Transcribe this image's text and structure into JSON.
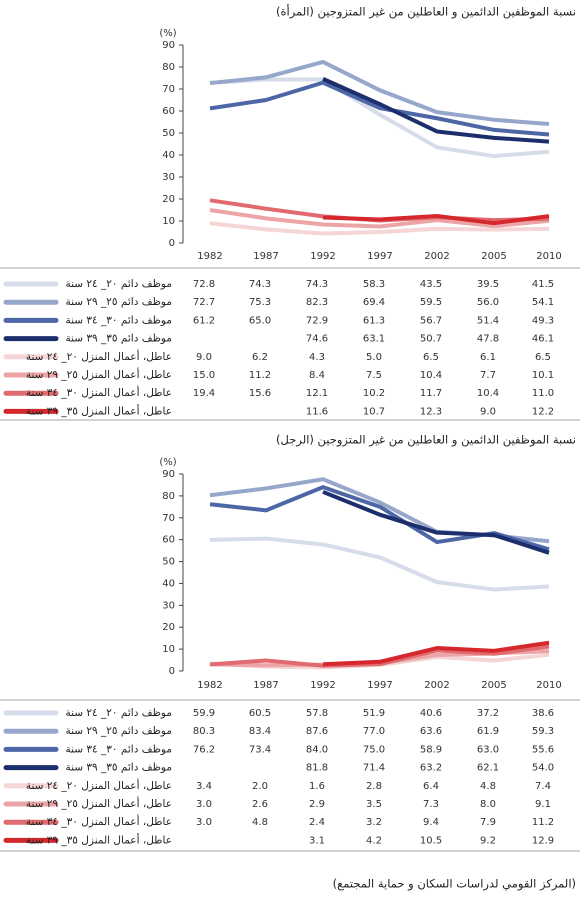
{
  "chart_data": [
    {
      "type": "line",
      "title": "نسبة الموظفين الدائمين و العاطلين من غير المتزوجين (المرأة)",
      "y_unit": "(%)",
      "categories": [
        "1982",
        "1987",
        "1992",
        "1997",
        "2002",
        "2005",
        "2010"
      ],
      "ylim": [
        0,
        90
      ],
      "yticks": [
        0,
        10,
        20,
        30,
        40,
        50,
        60,
        70,
        80,
        90
      ],
      "grid": false,
      "series": [
        {
          "name": "موظف دائم ٢٠_ ٢٤ سنة",
          "color": "#d6dcea",
          "values": [
            72.8,
            74.3,
            74.3,
            58.3,
            43.5,
            39.5,
            41.5
          ],
          "value_labels": [
            "72.8",
            "74.3",
            "74.3",
            "58.3",
            "43.5",
            "39.5",
            "41.5"
          ]
        },
        {
          "name": "موظف دائم ٢٥_ ٢٩ سنة",
          "color": "#97a7cb",
          "values": [
            72.7,
            75.3,
            82.3,
            69.4,
            59.5,
            56.0,
            54.1
          ],
          "value_labels": [
            "72.7",
            "75.3",
            "82.3",
            "69.4",
            "59.5",
            "56.0",
            "54.1"
          ]
        },
        {
          "name": "موظف دائم ٣٠_ ٣٤ سنة",
          "color": "#4d66a5",
          "values": [
            61.2,
            65.0,
            72.9,
            61.3,
            56.7,
            51.4,
            49.3
          ],
          "value_labels": [
            "61.2",
            "65.0",
            "72.9",
            "61.3",
            "56.7",
            "51.4",
            "49.3"
          ]
        },
        {
          "name": "موظف دائم ٣٥_ ٣٩ سنة",
          "color": "#1c2e6c",
          "values": [
            null,
            null,
            74.6,
            63.1,
            50.7,
            47.8,
            46.1
          ],
          "value_labels": [
            null,
            null,
            "74.6",
            "63.1",
            "50.7",
            "47.8",
            "46.1"
          ]
        },
        {
          "name": "عاطل، أعمال المنزل ٢٠_ ٢٤ سنة",
          "color": "#f5d5d5",
          "values": [
            9.0,
            6.2,
            4.3,
            5.0,
            6.5,
            6.1,
            6.5
          ],
          "value_labels": [
            "9.0",
            "6.2",
            "4.3",
            "5.0",
            "6.5",
            "6.1",
            "6.5"
          ]
        },
        {
          "name": "عاطل، أعمال المنزل ٢٥_ ٢٩ سنة",
          "color": "#eca4a6",
          "values": [
            15.0,
            11.2,
            8.4,
            7.5,
            10.4,
            7.7,
            10.1
          ],
          "value_labels": [
            "15.0",
            "11.2",
            "8.4",
            "7.5",
            "10.4",
            "7.7",
            "10.1"
          ]
        },
        {
          "name": "عاطل، أعمال المنزل ٣٠_ ٣٤ سنة",
          "color": "#e06a6d",
          "values": [
            19.4,
            15.6,
            12.1,
            10.2,
            11.7,
            10.4,
            11.0
          ],
          "value_labels": [
            "19.4",
            "15.6",
            "12.1",
            "10.2",
            "11.7",
            "10.4",
            "11.0"
          ]
        },
        {
          "name": "عاطل، أعمال المنزل ٣٥_ ٣٩ سنة",
          "color": "#d4282d",
          "values": [
            null,
            null,
            11.6,
            10.7,
            12.3,
            9.0,
            12.2
          ],
          "value_labels": [
            null,
            null,
            "11.6",
            "10.7",
            "12.3",
            "9.0",
            "12.2"
          ]
        }
      ]
    },
    {
      "type": "line",
      "title": "نسبة الموظفين الدائمين و العاطلين من غير المتزوجين (الرجل)",
      "y_unit": "(%)",
      "categories": [
        "1982",
        "1987",
        "1992",
        "1997",
        "2002",
        "2005",
        "2010"
      ],
      "ylim": [
        0,
        90
      ],
      "yticks": [
        0,
        10,
        20,
        30,
        40,
        50,
        60,
        70,
        80,
        90
      ],
      "grid": false,
      "series": [
        {
          "name": "موظف دائم ٢٠_ ٢٤ سنة",
          "color": "#d6dcea",
          "values": [
            59.9,
            60.5,
            57.8,
            51.9,
            40.6,
            37.2,
            38.6
          ],
          "value_labels": [
            "59.9",
            "60.5",
            "57.8",
            "51.9",
            "40.6",
            "37.2",
            "38.6"
          ]
        },
        {
          "name": "موظف دائم ٢٥_ ٢٩ سنة",
          "color": "#97a7cb",
          "values": [
            80.3,
            83.4,
            87.6,
            77.0,
            63.6,
            61.9,
            59.3
          ],
          "value_labels": [
            "80.3",
            "83.4",
            "87.6",
            "77.0",
            "63.6",
            "61.9",
            "59.3"
          ]
        },
        {
          "name": "موظف دائم ٣٠_ ٣٤ سنة",
          "color": "#4d66a5",
          "values": [
            76.2,
            73.4,
            84.0,
            75.0,
            58.9,
            63.0,
            55.6
          ],
          "value_labels": [
            "76.2",
            "73.4",
            "84.0",
            "75.0",
            "58.9",
            "63.0",
            "55.6"
          ]
        },
        {
          "name": "موظف دائم ٣٥_ ٣٩ سنة",
          "color": "#1c2e6c",
          "values": [
            null,
            null,
            81.8,
            71.4,
            63.2,
            62.1,
            54.0
          ],
          "value_labels": [
            null,
            null,
            "81.8",
            "71.4",
            "63.2",
            "62.1",
            "54.0"
          ]
        },
        {
          "name": "عاطل، أعمال المنزل ٢٠_ ٢٤ سنة",
          "color": "#f5d5d5",
          "values": [
            3.4,
            2.0,
            1.6,
            2.8,
            6.4,
            4.8,
            7.4
          ],
          "value_labels": [
            "3.4",
            "2.0",
            "1.6",
            "2.8",
            "6.4",
            "4.8",
            "7.4"
          ]
        },
        {
          "name": "عاطل، أعمال المنزل ٢٥_ ٢٩ سنة",
          "color": "#eca4a6",
          "values": [
            3.0,
            2.6,
            2.9,
            3.5,
            7.3,
            8.0,
            9.1
          ],
          "value_labels": [
            "3.0",
            "2.6",
            "2.9",
            "3.5",
            "7.3",
            "8.0",
            "9.1"
          ]
        },
        {
          "name": "عاطل، أعمال المنزل ٣٠_ ٣٤ سنة",
          "color": "#e06a6d",
          "values": [
            3.0,
            4.8,
            2.4,
            3.2,
            9.4,
            7.9,
            11.2
          ],
          "value_labels": [
            "3.0",
            "4.8",
            "2.4",
            "3.2",
            "9.4",
            "7.9",
            "11.2"
          ]
        },
        {
          "name": "عاطل، أعمال المنزل ٣٥_ ٣٩ سنة",
          "color": "#d4282d",
          "values": [
            null,
            null,
            3.1,
            4.2,
            10.5,
            9.2,
            12.9
          ],
          "value_labels": [
            null,
            null,
            "3.1",
            "4.2",
            "10.5",
            "9.2",
            "12.9"
          ]
        }
      ]
    }
  ],
  "source": "(المركز القومي لدراسات السكان و حماية المجتمع)"
}
